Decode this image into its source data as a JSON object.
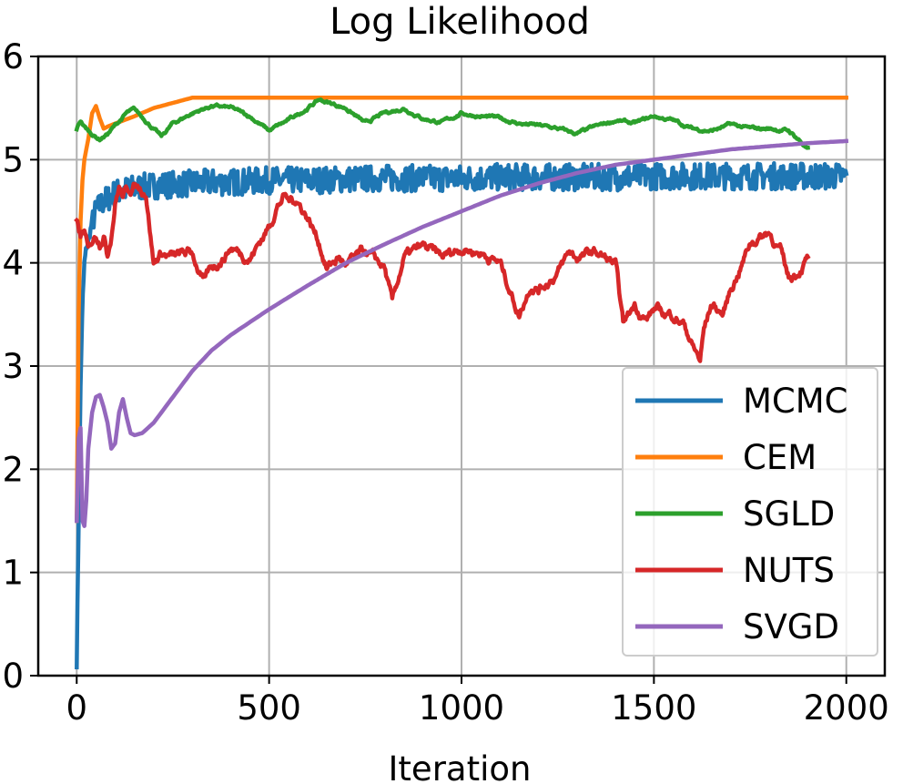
{
  "chart_data": {
    "type": "line",
    "title": "Log Likelihood",
    "xlabel": "Iteration",
    "ylabel": "",
    "xlim": [
      -100,
      2100
    ],
    "ylim": [
      0,
      6
    ],
    "xticks": [
      0,
      500,
      1000,
      1500,
      2000
    ],
    "yticks": [
      0,
      1,
      2,
      3,
      4,
      5,
      6
    ],
    "xtick_labels": [
      "0",
      "500",
      "1000",
      "1500",
      "2000"
    ],
    "ytick_labels": [
      "0",
      "1",
      "2",
      "3",
      "4",
      "5",
      "6"
    ],
    "grid": true,
    "legend_position": "lower-right",
    "series": [
      {
        "name": "MCMC",
        "color": "#1f77b4",
        "x": [
          0,
          5,
          10,
          15,
          20,
          25,
          30,
          40,
          50,
          60,
          70,
          80,
          90,
          100,
          120,
          140,
          160,
          180,
          200,
          250,
          300,
          350,
          400,
          450,
          500,
          600,
          700,
          800,
          900,
          1000,
          1100,
          1200,
          1300,
          1400,
          1500,
          1600,
          1700,
          1800,
          1900,
          2000
        ],
        "y": [
          0.12,
          1.5,
          2.8,
          3.6,
          4.0,
          4.15,
          4.2,
          4.4,
          4.5,
          4.55,
          4.6,
          4.62,
          4.65,
          4.68,
          4.7,
          4.72,
          4.73,
          4.74,
          4.75,
          4.76,
          4.77,
          4.78,
          4.78,
          4.79,
          4.8,
          4.8,
          4.81,
          4.82,
          4.82,
          4.82,
          4.83,
          4.83,
          4.83,
          4.83,
          4.84,
          4.84,
          4.84,
          4.84,
          4.84,
          4.84
        ],
        "noise": 0.13
      },
      {
        "name": "CEM",
        "color": "#ff7f0e",
        "x": [
          0,
          5,
          10,
          15,
          20,
          30,
          40,
          50,
          60,
          70,
          80,
          100,
          150,
          200,
          250,
          300,
          400,
          600,
          1000,
          1500,
          2000
        ],
        "y": [
          1.5,
          3.5,
          4.4,
          4.8,
          5.0,
          5.2,
          5.45,
          5.52,
          5.4,
          5.3,
          5.32,
          5.35,
          5.42,
          5.5,
          5.55,
          5.6,
          5.6,
          5.6,
          5.6,
          5.6,
          5.6
        ],
        "noise": 0
      },
      {
        "name": "SGLD",
        "color": "#2ca02c",
        "x": [
          0,
          10,
          20,
          30,
          40,
          50,
          60,
          80,
          100,
          130,
          150,
          180,
          200,
          220,
          250,
          300,
          350,
          400,
          450,
          500,
          550,
          600,
          630,
          700,
          750,
          800,
          850,
          900,
          950,
          1000,
          1050,
          1100,
          1150,
          1200,
          1250,
          1300,
          1350,
          1400,
          1450,
          1500,
          1550,
          1600,
          1650,
          1700,
          1750,
          1800,
          1850,
          1875,
          1900
        ],
        "y": [
          5.3,
          5.38,
          5.32,
          5.28,
          5.25,
          5.22,
          5.2,
          5.25,
          5.33,
          5.45,
          5.48,
          5.38,
          5.3,
          5.22,
          5.35,
          5.45,
          5.52,
          5.5,
          5.42,
          5.28,
          5.38,
          5.5,
          5.58,
          5.5,
          5.35,
          5.45,
          5.5,
          5.4,
          5.36,
          5.45,
          5.42,
          5.4,
          5.35,
          5.33,
          5.3,
          5.25,
          5.32,
          5.38,
          5.35,
          5.42,
          5.38,
          5.3,
          5.28,
          5.34,
          5.3,
          5.3,
          5.28,
          5.2,
          5.1
        ],
        "noise": 0.02
      },
      {
        "name": "NUTS",
        "color": "#d62728",
        "x": [
          0,
          10,
          20,
          30,
          40,
          50,
          60,
          70,
          80,
          90,
          100,
          110,
          120,
          130,
          150,
          180,
          200,
          220,
          250,
          300,
          330,
          350,
          380,
          400,
          450,
          500,
          520,
          540,
          550,
          570,
          600,
          630,
          650,
          680,
          700,
          750,
          800,
          820,
          850,
          900,
          950,
          1000,
          1050,
          1100,
          1130,
          1150,
          1180,
          1200,
          1250,
          1280,
          1300,
          1350,
          1400,
          1420,
          1450,
          1480,
          1500,
          1530,
          1550,
          1580,
          1600,
          1620,
          1630,
          1650,
          1680,
          1700,
          1730,
          1750,
          1800,
          1830,
          1850,
          1870,
          1900
        ],
        "y": [
          4.4,
          4.25,
          4.3,
          4.1,
          4.2,
          4.28,
          4.22,
          4.3,
          4.1,
          4.3,
          4.6,
          4.75,
          4.65,
          4.7,
          4.75,
          4.7,
          4.0,
          4.1,
          4.05,
          4.1,
          3.8,
          3.95,
          4.05,
          4.15,
          4.05,
          4.35,
          4.55,
          4.65,
          4.6,
          4.62,
          4.45,
          4.2,
          3.95,
          4.05,
          3.98,
          4.1,
          3.95,
          3.6,
          4.05,
          4.15,
          4.05,
          4.15,
          4.1,
          4.0,
          3.7,
          3.5,
          3.8,
          3.75,
          3.9,
          4.1,
          4.05,
          4.1,
          3.98,
          3.4,
          3.6,
          3.45,
          3.55,
          3.5,
          3.5,
          3.4,
          3.2,
          3.05,
          3.35,
          3.6,
          3.5,
          3.75,
          4.0,
          4.2,
          4.3,
          4.1,
          3.85,
          3.9,
          4.05
        ],
        "noise": 0.06
      },
      {
        "name": "SVGD",
        "color": "#9467bd",
        "x": [
          0,
          5,
          10,
          15,
          20,
          25,
          30,
          40,
          50,
          60,
          70,
          80,
          90,
          100,
          110,
          120,
          130,
          140,
          150,
          170,
          200,
          250,
          300,
          350,
          400,
          500,
          600,
          700,
          800,
          900,
          1000,
          1100,
          1200,
          1300,
          1400,
          1500,
          1600,
          1700,
          1800,
          1900,
          2000
        ],
        "y": [
          1.5,
          2.3,
          2.4,
          1.5,
          1.45,
          1.7,
          2.2,
          2.55,
          2.7,
          2.72,
          2.6,
          2.45,
          2.2,
          2.25,
          2.55,
          2.68,
          2.5,
          2.35,
          2.33,
          2.35,
          2.45,
          2.7,
          2.95,
          3.15,
          3.3,
          3.55,
          3.78,
          4.0,
          4.18,
          4.35,
          4.5,
          4.65,
          4.77,
          4.87,
          4.95,
          5.0,
          5.05,
          5.1,
          5.13,
          5.16,
          5.18
        ],
        "noise": 0
      }
    ]
  }
}
